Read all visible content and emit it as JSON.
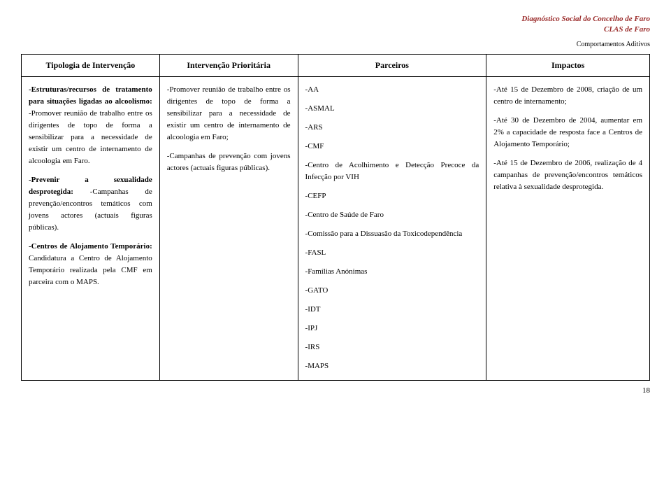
{
  "header": {
    "line1": "Diagnóstico Social do Concelho de Faro",
    "line2": "CLAS de Faro",
    "line3": "Comportamentos Aditivos"
  },
  "table": {
    "headers": {
      "c1": "Tipologia de Intervenção",
      "c2": "Intervenção Prioritária",
      "c3": "Parceiros",
      "c4": "Impactos"
    },
    "col1": {
      "p1a": "-Estruturas/recursos de tratamento para situações ligadas ao alcoolismo:",
      "p1b": "-Promover reunião de trabalho entre os dirigentes de topo de forma a sensibilizar para a necessidade de existir um centro de internamento de alcoologia em Faro.",
      "p2a": "-Prevenir a sexualidade desprotegida:",
      "p2b": "-Campanhas de prevenção/encontros temáticos com jovens actores (actuais figuras públicas).",
      "p3a": "-Centros de Alojamento Temporário:",
      "p3b": "Candidatura a Centro de Alojamento Temporário realizada pela CMF em parceira com o MAPS."
    },
    "col2": {
      "p1": "-Promover reunião de trabalho entre os dirigentes de topo de forma a sensibilizar para a necessidade de existir um centro de internamento de alcoologia em Faro;",
      "p2": "-Campanhas de prevenção com jovens actores (actuais figuras públicas)."
    },
    "col3": {
      "i1": "-AA",
      "i2": "-ASMAL",
      "i3": "-ARS",
      "i4": "-CMF",
      "i5": "-Centro de Acolhimento e Detecção Precoce da Infecção por VIH",
      "i6": "-CEFP",
      "i7": "-Centro de Saúde de Faro",
      "i8": "-Comissão para a Dissuasão da Toxicodependência",
      "i9": "-FASL",
      "i10": "-Famílias Anónimas",
      "i11": "-GATO",
      "i12": "-IDT",
      "i13": "-IPJ",
      "i14": "-IRS",
      "i15": "-MAPS"
    },
    "col4": {
      "p1": "-Até 15 de Dezembro de 2008, criação de um centro de internamento;",
      "p2": "-Até 30 de Dezembro de 2004, aumentar em 2% a capacidade de resposta face a Centros de Alojamento Temporário;",
      "p3": "-Até 15 de Dezembro de 2006, realização de 4 campanhas de prevenção/encontros temáticos relativa à sexualidade desprotegida."
    }
  },
  "pagenum": "18"
}
